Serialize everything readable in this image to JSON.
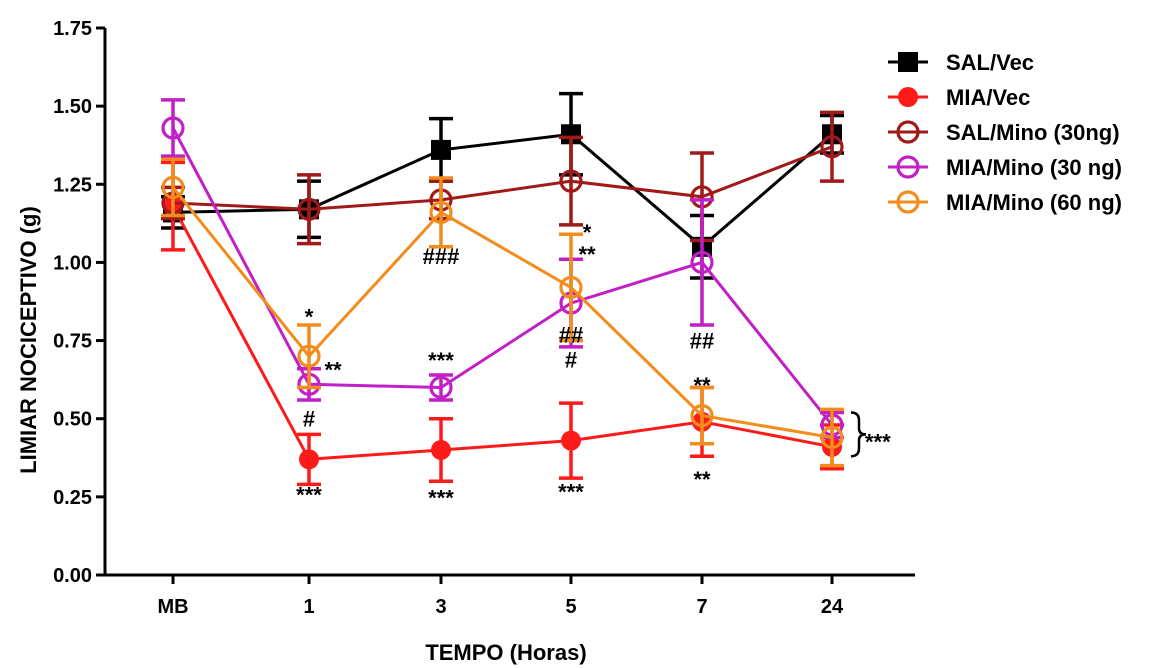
{
  "chart_data": {
    "type": "line",
    "xlabel": "TEMPO (Horas)",
    "ylabel": "LIMIAR NOCICEPTIVO (g)",
    "categories": [
      "MB",
      "1",
      "3",
      "5",
      "7",
      "24"
    ],
    "ylim": [
      0,
      1.75
    ],
    "yticks": [
      "0.00",
      "0.25",
      "0.50",
      "0.75",
      "1.00",
      "1.25",
      "1.50",
      "1.75"
    ],
    "grid": false,
    "legend_position": "top-right",
    "series": [
      {
        "name": "SAL/Vec",
        "color": "#000000",
        "marker": "filled-square",
        "values": [
          1.16,
          1.17,
          1.36,
          1.41,
          1.05,
          1.41
        ],
        "errors": [
          0.05,
          0.09,
          0.1,
          0.13,
          0.1,
          0.06
        ]
      },
      {
        "name": "MIA/Vec",
        "color": "#ff1a1a",
        "marker": "filled-circle",
        "values": [
          1.18,
          0.37,
          0.4,
          0.43,
          0.49,
          0.41
        ],
        "errors": [
          0.14,
          0.08,
          0.1,
          0.12,
          0.11,
          0.07
        ]
      },
      {
        "name": "SAL/Mino (30ng)",
        "color": "#a11a1a",
        "marker": "open-circle",
        "values": [
          1.19,
          1.17,
          1.2,
          1.26,
          1.21,
          1.37
        ],
        "errors": [
          0.05,
          0.11,
          0.06,
          0.14,
          0.14,
          0.11
        ]
      },
      {
        "name": "MIA/Mino (30 ng)",
        "color": "#c21fc7",
        "marker": "open-circle",
        "values": [
          1.43,
          0.61,
          0.6,
          0.87,
          1.0,
          0.48
        ],
        "errors": [
          0.09,
          0.05,
          0.04,
          0.14,
          0.2,
          0.04
        ]
      },
      {
        "name": "MIA/Mino (60 ng)",
        "color": "#f28c1c",
        "marker": "open-circle",
        "values": [
          1.24,
          0.7,
          1.16,
          0.92,
          0.51,
          0.44
        ],
        "errors": [
          0.09,
          0.1,
          0.11,
          0.17,
          0.09,
          0.09
        ]
      }
    ],
    "annotations": [
      {
        "text": "***",
        "category": "1",
        "y": 0.27
      },
      {
        "text": "#",
        "category": "1",
        "y": 0.5
      },
      {
        "text": "**",
        "category": "1",
        "y": 0.67
      },
      {
        "text": "*",
        "category": "1",
        "y": 0.84
      },
      {
        "text": "***",
        "category": "3",
        "y": 0.26
      },
      {
        "text": "***",
        "category": "3",
        "y": 0.7
      },
      {
        "text": "###",
        "category": "3",
        "y": 1.02
      },
      {
        "text": "***",
        "category": "5",
        "y": 0.28
      },
      {
        "text": "#",
        "category": "5",
        "y": 0.69
      },
      {
        "text": "##",
        "category": "5",
        "y": 0.77
      },
      {
        "text": "**",
        "category": "5",
        "y": 1.04
      },
      {
        "text": "*",
        "category": "5",
        "y": 1.11
      },
      {
        "text": "**",
        "category": "7",
        "y": 0.32
      },
      {
        "text": "**",
        "category": "7",
        "y": 0.62
      },
      {
        "text": "##",
        "category": "7",
        "y": 0.75
      },
      {
        "text": "***",
        "category": "24",
        "y": 0.44
      }
    ]
  }
}
